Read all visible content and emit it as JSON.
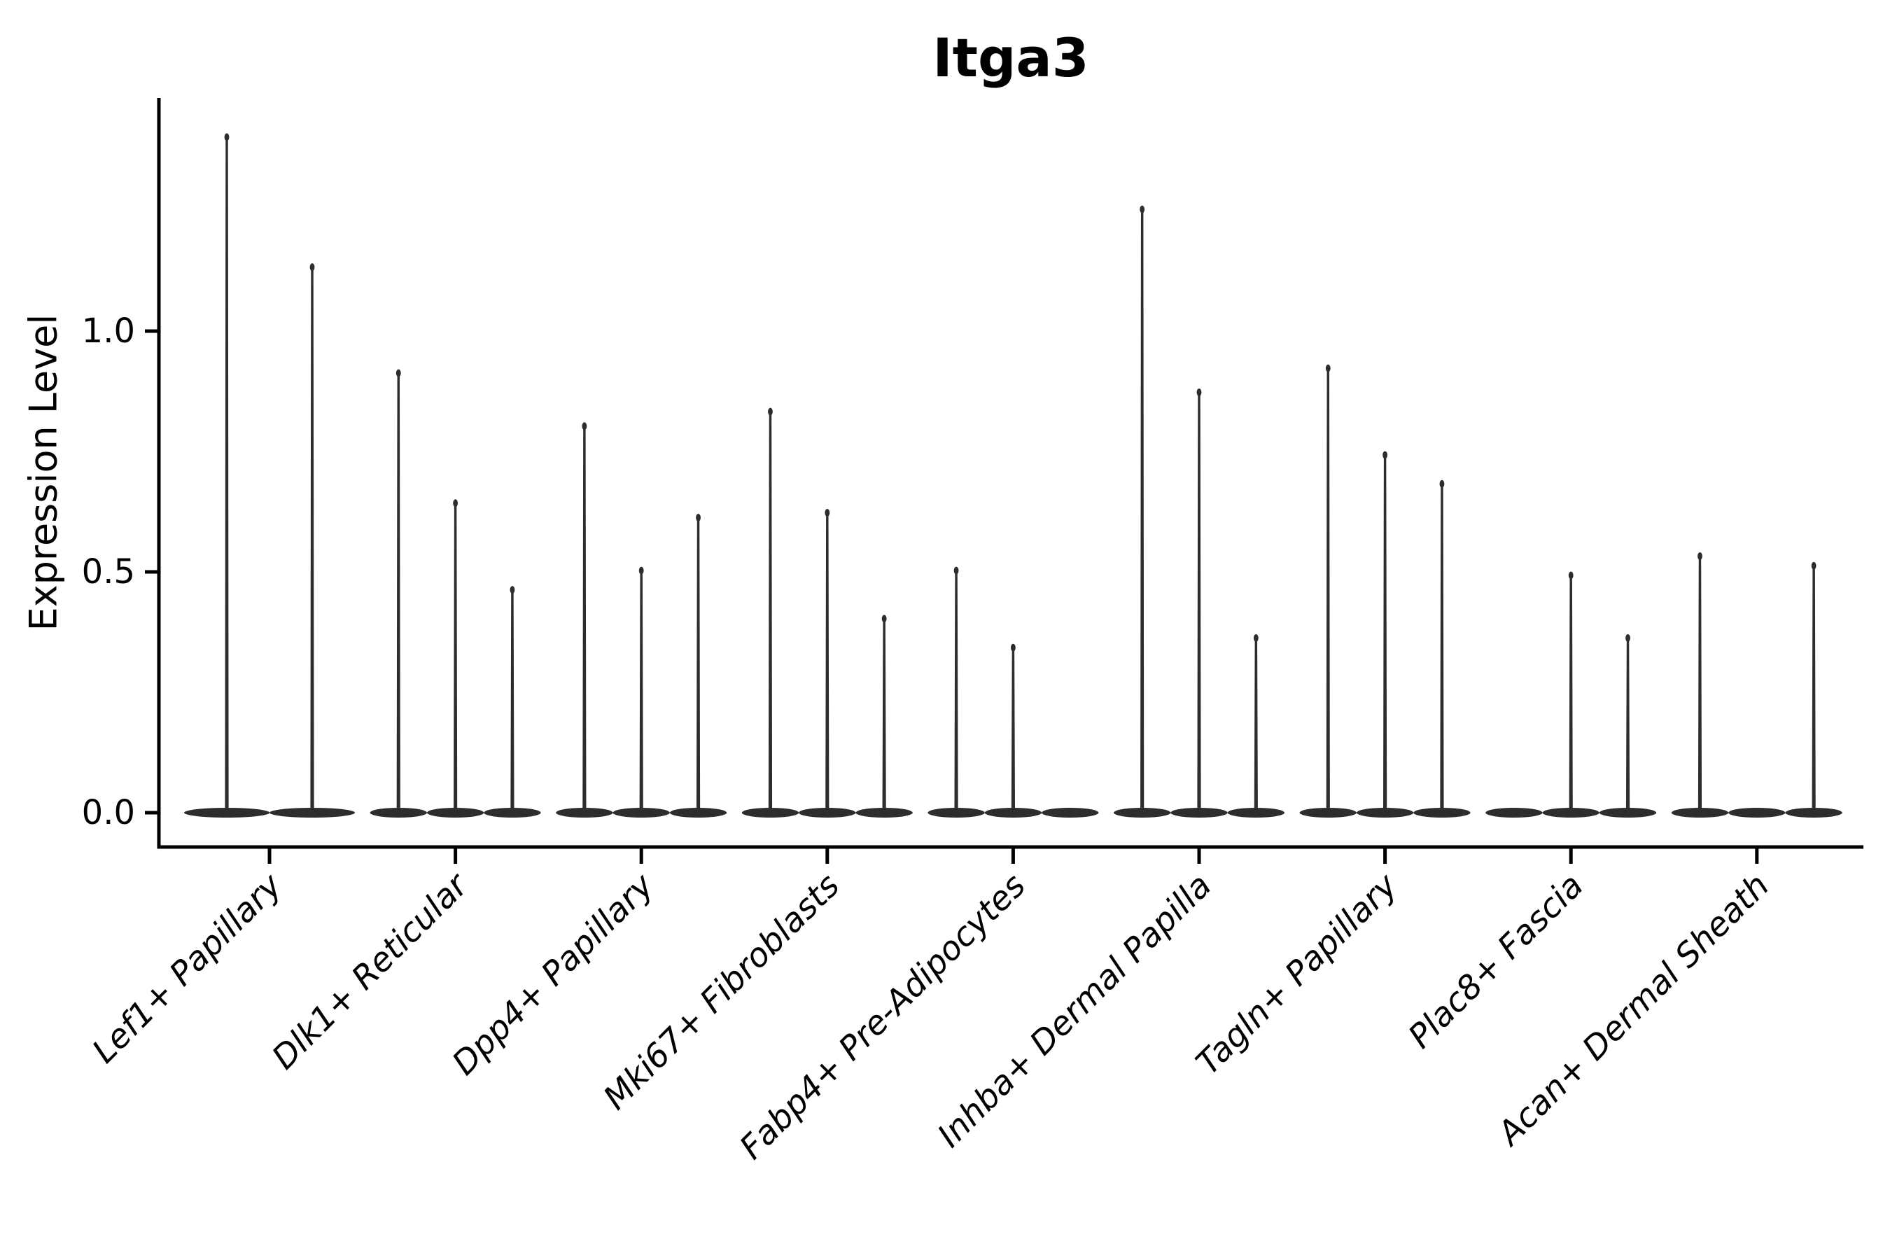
{
  "page": {
    "background": "#ffffff"
  },
  "chart_data": {
    "type": "violin",
    "title": "Itga3",
    "ylabel": "Expression Level",
    "xlabel": "",
    "ytick_labels": [
      "0.0",
      "0.5",
      "1.0"
    ],
    "ytick_values": [
      0.0,
      0.5,
      1.0
    ],
    "ylim": [
      -0.071,
      1.484
    ],
    "grid": false,
    "legend_position": "none",
    "violin_color": "#2d2d2d",
    "axis_color": "#000000",
    "text_color": "#000000",
    "categories": [
      "Lef1+ Papillary",
      "Dlk1+ Reticular",
      "Dpp4+ Papillary",
      "Mki67+ Fibroblasts",
      "Fabp4+ Pre-Adipocytes",
      "Inhba+ Dermal Papilla",
      "Tagln+ Papillary",
      "Plac8+ Fascia",
      "Acan+ Dermal Sheath"
    ],
    "groups": [
      {
        "category": "Lef1+ Papillary",
        "violins": [
          1.41,
          1.14
        ]
      },
      {
        "category": "Dlk1+ Reticular",
        "violins": [
          0.92,
          0.65,
          0.47
        ]
      },
      {
        "category": "Dpp4+ Papillary",
        "violins": [
          0.81,
          0.51,
          0.62
        ]
      },
      {
        "category": "Mki67+ Fibroblasts",
        "violins": [
          0.84,
          0.63,
          0.41
        ]
      },
      {
        "category": "Fabp4+ Pre-Adipocytes",
        "violins": [
          0.51,
          0.35,
          0
        ]
      },
      {
        "category": "Inhba+ Dermal Papilla",
        "violins": [
          1.26,
          0.88,
          0.37
        ]
      },
      {
        "category": "Tagln+ Papillary",
        "violins": [
          0.93,
          0.75,
          0.69
        ]
      },
      {
        "category": "Plac8+ Fascia",
        "violins": [
          0,
          0.5,
          0.37
        ]
      },
      {
        "category": "Acan+ Dermal Sheath",
        "violins": [
          0.54,
          0,
          0.52
        ]
      }
    ]
  }
}
